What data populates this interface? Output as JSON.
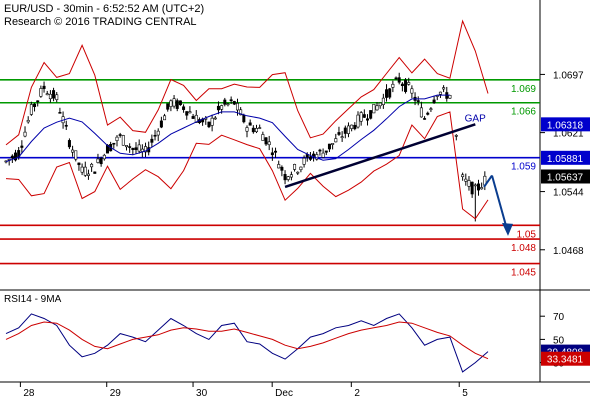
{
  "header": {
    "line1": "EUR/USD - 30min - 6:52:52 AM (UTC+2)",
    "line2": "Research © 2016 TRADING CENTRAL"
  },
  "chart_data": [
    {
      "type": "candlestick",
      "panel": "price",
      "instrument": "EUR/USD",
      "timeframe": "30min",
      "y_ticks": [
        1.0697,
        1.0621,
        1.0544,
        1.0468
      ],
      "ylim": [
        1.0422,
        1.0755
      ],
      "x_ticks": [
        "28",
        "29",
        "30",
        "Dec",
        "2",
        "5"
      ],
      "grid": false,
      "series": [
        {
          "name": "price",
          "approx_close": [
            1.0583,
            1.0595,
            1.065,
            1.068,
            1.0665,
            1.061,
            1.057,
            1.0575,
            1.06,
            1.0615,
            1.06,
            1.0595,
            1.0625,
            1.066,
            1.0655,
            1.064,
            1.063,
            1.0655,
            1.066,
            1.063,
            1.0625,
            1.06,
            1.0565,
            1.0575,
            1.059,
            1.0595,
            1.061,
            1.0625,
            1.064,
            1.065,
            1.067,
            1.069,
            1.0675,
            1.064,
            1.0675,
            1.067,
            1.056,
            1.0545,
            1.0563
          ]
        }
      ],
      "levels": [
        {
          "label": "1.069",
          "value": 1.069,
          "color": "#009900"
        },
        {
          "label": "1.066",
          "value": 1.066,
          "color": "#009900"
        },
        {
          "label": "1.059",
          "value": 1.05882,
          "color": "#0000cc"
        },
        {
          "label": "1.05",
          "value": 1.05,
          "color": "#cc0000"
        },
        {
          "label": "1.048",
          "value": 1.0482,
          "color": "#cc0000"
        },
        {
          "label": "1.045",
          "value": 1.045,
          "color": "#cc0000"
        }
      ],
      "price_tags": [
        {
          "label": "1.06318",
          "value": 1.06318,
          "color": "#0000cc"
        },
        {
          "label": "1.05881",
          "value": 1.05881,
          "color": "#0000cc"
        },
        {
          "label": "1.05637",
          "value": 1.05637,
          "color": "#000000"
        }
      ],
      "annotations": [
        "GAP"
      ]
    },
    {
      "type": "line",
      "panel": "indicator",
      "title": "RSI14 - 9MA",
      "y_ticks": [
        70,
        50,
        30
      ],
      "ylim": [
        15,
        90
      ],
      "series": [
        {
          "name": "RSI14",
          "color": "#000080",
          "values": [
            55,
            60,
            72,
            68,
            62,
            45,
            35,
            38,
            45,
            55,
            52,
            48,
            58,
            68,
            62,
            55,
            50,
            62,
            64,
            48,
            46,
            38,
            33,
            42,
            52,
            55,
            60,
            62,
            66,
            62,
            68,
            72,
            60,
            45,
            50,
            52,
            22,
            30,
            39.48
          ]
        },
        {
          "name": "9MA",
          "color": "#cc0000",
          "values": [
            50,
            55,
            62,
            65,
            64,
            58,
            50,
            44,
            42,
            46,
            50,
            52,
            54,
            58,
            60,
            59,
            57,
            57,
            59,
            56,
            53,
            50,
            45,
            42,
            44,
            47,
            51,
            55,
            58,
            60,
            62,
            65,
            64,
            60,
            56,
            53,
            45,
            38,
            33.35
          ]
        }
      ],
      "value_tags": [
        {
          "label": "39.4808",
          "value": 39.4808,
          "color": "#000080"
        },
        {
          "label": "33.3481",
          "value": 33.3481,
          "color": "#cc0000"
        }
      ]
    }
  ]
}
